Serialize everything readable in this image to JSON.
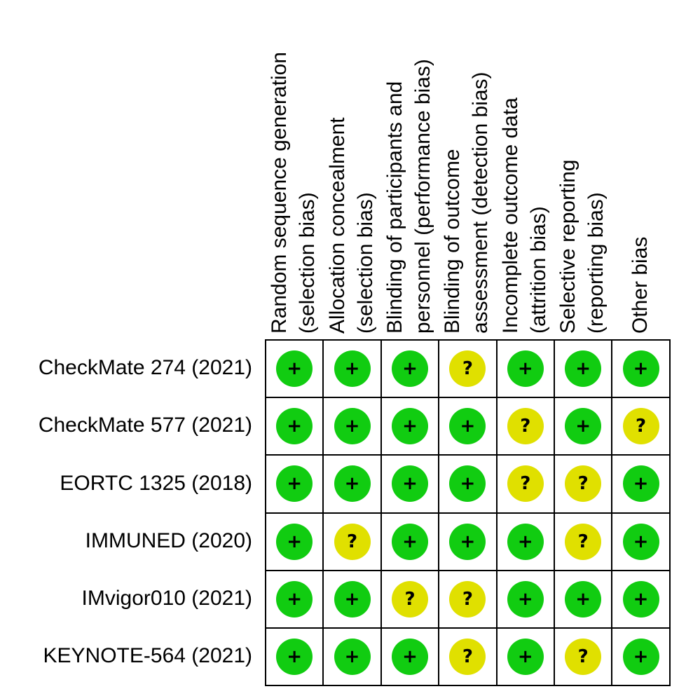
{
  "figure": {
    "columns": [
      {
        "lines": [
          "Random sequence generation",
          "(selection bias)"
        ]
      },
      {
        "lines": [
          "Allocation concealment",
          "(selection bias)"
        ]
      },
      {
        "lines": [
          "Blinding of participants and",
          "personnel (performance bias)"
        ]
      },
      {
        "lines": [
          "Blinding of outcome",
          "assessment (detection bias)"
        ]
      },
      {
        "lines": [
          "Incomplete outcome data",
          "(attrition bias)"
        ]
      },
      {
        "lines": [
          "Selective reporting",
          "(reporting bias)"
        ]
      },
      {
        "lines": [
          "Other bias"
        ]
      }
    ],
    "rows": [
      {
        "study": "CheckMate 274 (2021)",
        "judgements": [
          "low",
          "low",
          "low",
          "unclear",
          "low",
          "low",
          "low"
        ]
      },
      {
        "study": "CheckMate 577 (2021)",
        "judgements": [
          "low",
          "low",
          "low",
          "low",
          "unclear",
          "low",
          "unclear"
        ]
      },
      {
        "study": "EORTC 1325 (2018)",
        "judgements": [
          "low",
          "low",
          "low",
          "low",
          "unclear",
          "unclear",
          "low"
        ]
      },
      {
        "study": "IMMUNED (2020)",
        "judgements": [
          "low",
          "unclear",
          "low",
          "low",
          "low",
          "unclear",
          "low"
        ]
      },
      {
        "study": "IMvigor010 (2021)",
        "judgements": [
          "low",
          "low",
          "unclear",
          "unclear",
          "low",
          "low",
          "low"
        ]
      },
      {
        "study": "KEYNOTE-564 (2021)",
        "judgements": [
          "low",
          "low",
          "low",
          "unclear",
          "low",
          "unclear",
          "low"
        ]
      }
    ],
    "symbols": {
      "low": "+",
      "unclear": "?"
    },
    "colors": {
      "low": "#11cc11",
      "unclear": "#e0e000",
      "border": "#000000"
    }
  }
}
